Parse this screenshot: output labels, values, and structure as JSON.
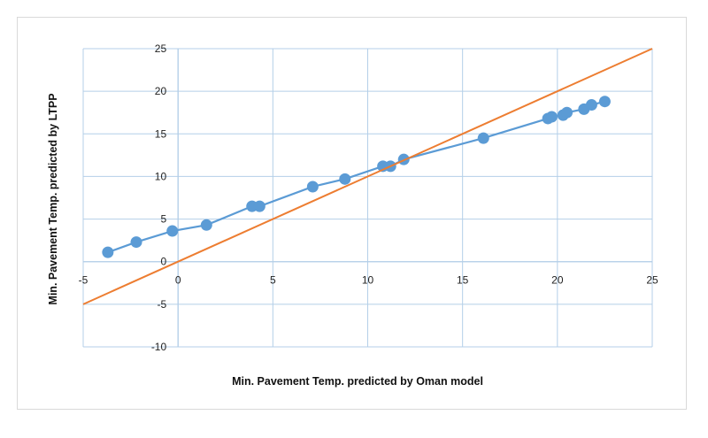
{
  "chart_data": {
    "type": "scatter",
    "title": "",
    "xlabel": "Min. Pavement Temp. predicted by Oman model",
    "ylabel": "Min. Pavement Temp. predicted by LTPP",
    "xlim": [
      -5,
      25
    ],
    "ylim": [
      -10,
      25
    ],
    "x_ticks": [
      -5,
      0,
      5,
      10,
      15,
      20,
      25
    ],
    "y_ticks": [
      -10,
      -5,
      0,
      5,
      10,
      15,
      20,
      25
    ],
    "grid": true,
    "legend": "none",
    "series": [
      {
        "kind": "scatter-with-line",
        "color": "#5b9bd5",
        "points": [
          [
            -3.7,
            1.1
          ],
          [
            -2.2,
            2.3
          ],
          [
            -0.3,
            3.6
          ],
          [
            1.5,
            4.3
          ],
          [
            3.9,
            6.5
          ],
          [
            4.3,
            6.5
          ],
          [
            7.1,
            8.8
          ],
          [
            8.8,
            9.7
          ],
          [
            10.8,
            11.2
          ],
          [
            11.2,
            11.2
          ],
          [
            11.9,
            12.0
          ],
          [
            16.1,
            14.5
          ],
          [
            19.5,
            16.8
          ],
          [
            19.7,
            17.0
          ],
          [
            20.3,
            17.2
          ],
          [
            20.5,
            17.5
          ],
          [
            21.4,
            17.9
          ],
          [
            21.8,
            18.4
          ],
          [
            22.5,
            18.8
          ]
        ]
      },
      {
        "kind": "line",
        "color": "#ed7d31",
        "points": [
          [
            -5,
            -5
          ],
          [
            25,
            25
          ]
        ]
      }
    ]
  }
}
